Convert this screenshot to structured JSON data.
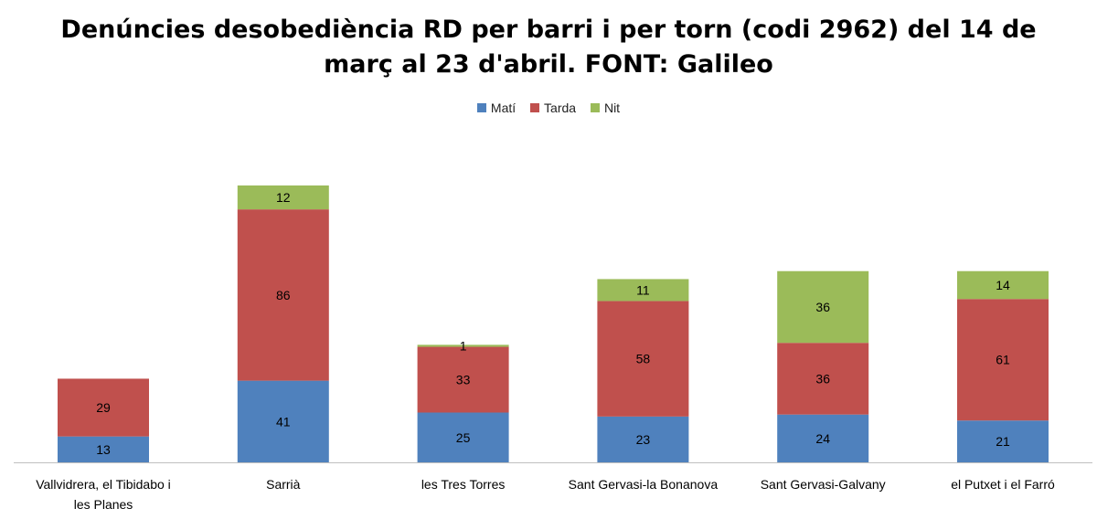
{
  "chart_data": {
    "type": "bar",
    "stacked": true,
    "title": [
      "Denúncies desobediència RD per barri i per torn (codi 2962) del 14 de",
      "març al 23 d'abril. FONT: Galileo"
    ],
    "legend_position": "top",
    "grid": false,
    "categories": [
      [
        "Vallvidrera, el Tibidabo i",
        "les Planes"
      ],
      [
        "Sarrià"
      ],
      [
        "les Tres Torres"
      ],
      [
        "Sant Gervasi-la Bonanova"
      ],
      [
        "Sant Gervasi-Galvany"
      ],
      [
        "el Putxet i el Farró"
      ]
    ],
    "series": [
      {
        "name": "Matí",
        "color": "#4f81bd",
        "values": [
          13,
          41,
          25,
          23,
          24,
          21
        ]
      },
      {
        "name": "Tarda",
        "color": "#c0504d",
        "values": [
          29,
          86,
          33,
          58,
          36,
          61
        ]
      },
      {
        "name": "Nit",
        "color": "#9bbb59",
        "values": [
          null,
          12,
          1,
          11,
          36,
          14
        ]
      }
    ]
  }
}
